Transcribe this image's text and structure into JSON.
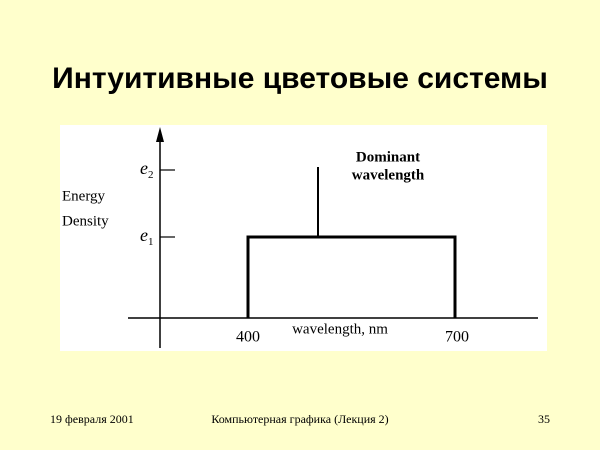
{
  "title": "Интуитивные цветовые системы",
  "figure": {
    "y_axis_label": [
      "Energy",
      "Density"
    ],
    "y_marks": [
      {
        "symbol": "e",
        "subscript": "2"
      },
      {
        "symbol": "e",
        "subscript": "1"
      }
    ],
    "annotation": [
      "Dominant",
      "wavelength"
    ],
    "x_axis_label": "wavelength, nm",
    "x_marks": [
      "400",
      "700"
    ]
  },
  "footer": {
    "date": "19 февраля 2001",
    "course": "Компьютерная графика (Лекция 2)",
    "page": "35"
  }
}
